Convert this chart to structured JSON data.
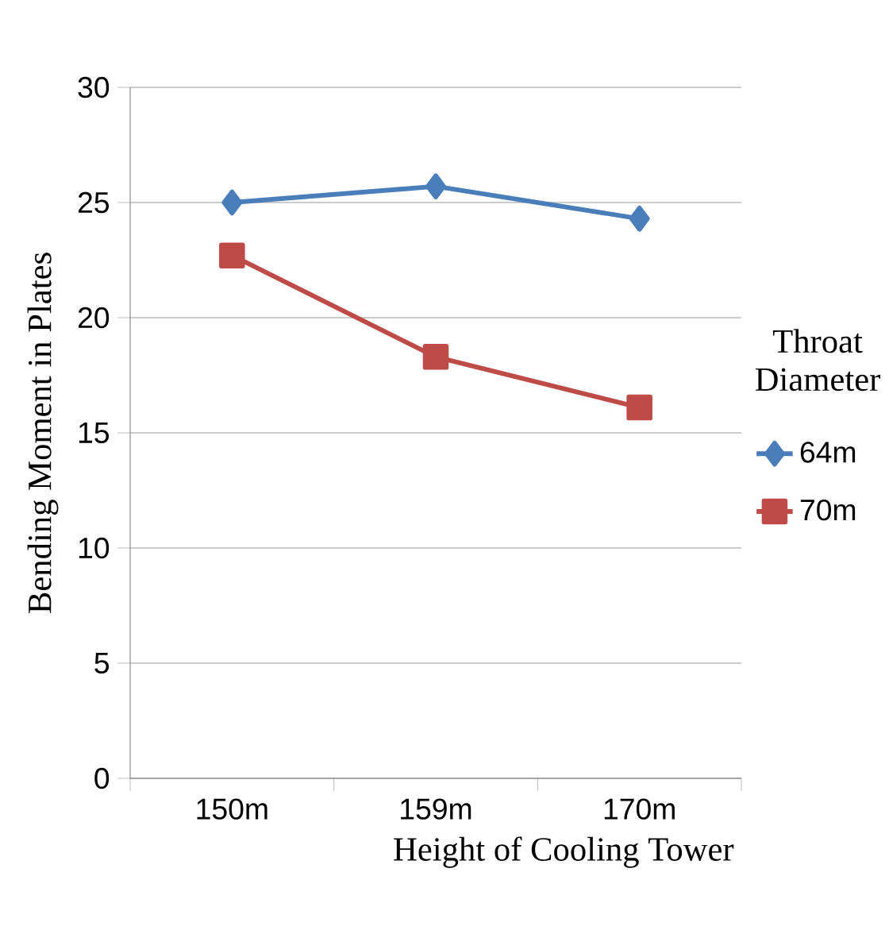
{
  "chart_data": {
    "type": "line",
    "xlabel": "Height of Cooling Tower",
    "ylabel": "Bending Moment in Plates",
    "legend_title": "Throat Diameter",
    "categories": [
      "150m",
      "159m",
      "170m"
    ],
    "series": [
      {
        "name": "64m",
        "color": "#4a7ebb",
        "marker": "diamond",
        "values": [
          25.0,
          25.7,
          24.3
        ]
      },
      {
        "name": "70m",
        "color": "#be4b48",
        "marker": "square",
        "values": [
          22.7,
          18.3,
          16.1
        ]
      }
    ],
    "ylim": [
      0,
      30
    ],
    "yticks": [
      0,
      5,
      10,
      15,
      20,
      25,
      30
    ],
    "grid": "y",
    "legend": "right"
  }
}
